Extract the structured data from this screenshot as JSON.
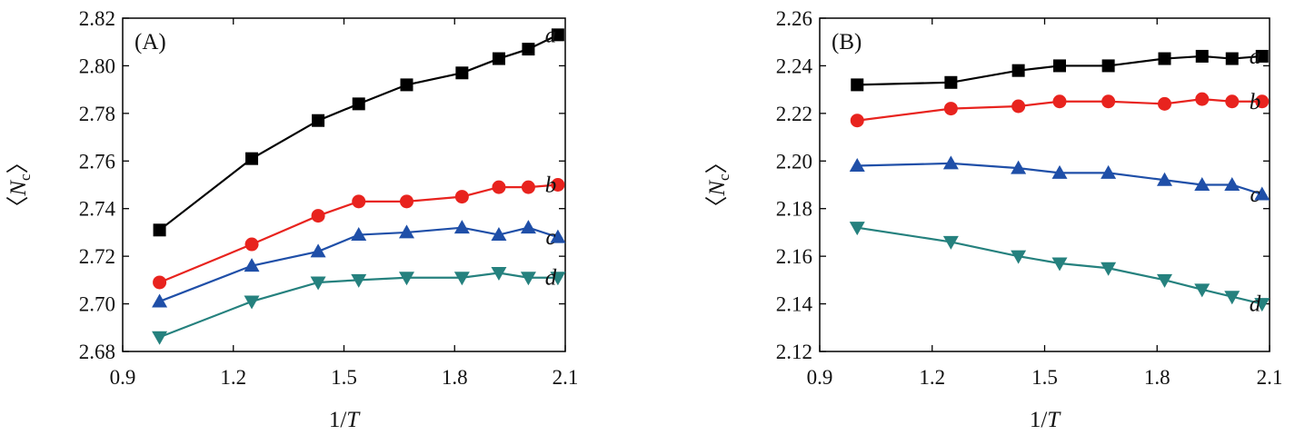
{
  "chart_data": [
    {
      "type": "line",
      "panel_label": "(A)",
      "xlabel_prefix": "1/",
      "xlabel_var": "T",
      "ylabel_open": "〈",
      "ylabel_var": "N",
      "ylabel_sub": "c",
      "ylabel_close": "〉",
      "xlim": [
        0.9,
        2.1
      ],
      "ylim": [
        2.68,
        2.82
      ],
      "xticks": [
        0.9,
        1.2,
        1.5,
        1.8,
        2.1
      ],
      "yticks": [
        2.68,
        2.7,
        2.72,
        2.74,
        2.76,
        2.78,
        2.8,
        2.82
      ],
      "xtick_labels": [
        "0.9",
        "1.2",
        "1.5",
        "1.8",
        "2.1"
      ],
      "ytick_labels": [
        "2.68",
        "2.70",
        "2.72",
        "2.74",
        "2.76",
        "2.78",
        "2.80",
        "2.82"
      ],
      "x": [
        1.0,
        1.25,
        1.43,
        1.54,
        1.67,
        1.82,
        1.92,
        2.0,
        2.08
      ],
      "series": [
        {
          "name": "a",
          "color": "#000000",
          "marker": "square",
          "values": [
            2.731,
            2.761,
            2.777,
            2.784,
            2.792,
            2.797,
            2.803,
            2.807,
            2.813
          ]
        },
        {
          "name": "b",
          "color": "#e8231e",
          "marker": "circle",
          "values": [
            2.709,
            2.725,
            2.737,
            2.743,
            2.743,
            2.745,
            2.749,
            2.749,
            2.75
          ]
        },
        {
          "name": "c",
          "color": "#1f4fa8",
          "marker": "triangle-up",
          "values": [
            2.701,
            2.716,
            2.722,
            2.729,
            2.73,
            2.732,
            2.729,
            2.732,
            2.728
          ]
        },
        {
          "name": "d",
          "color": "#25817e",
          "marker": "triangle-down",
          "values": [
            2.686,
            2.701,
            2.709,
            2.71,
            2.711,
            2.711,
            2.713,
            2.711,
            2.711
          ]
        }
      ]
    },
    {
      "type": "line",
      "panel_label": "(B)",
      "xlabel_prefix": "1/",
      "xlabel_var": "T",
      "ylabel_open": "〈",
      "ylabel_var": "N",
      "ylabel_sub": "c",
      "ylabel_close": "〉",
      "xlim": [
        0.9,
        2.1
      ],
      "ylim": [
        2.12,
        2.26
      ],
      "xticks": [
        0.9,
        1.2,
        1.5,
        1.8,
        2.1
      ],
      "yticks": [
        2.12,
        2.14,
        2.16,
        2.18,
        2.2,
        2.22,
        2.24,
        2.26
      ],
      "xtick_labels": [
        "0.9",
        "1.2",
        "1.5",
        "1.8",
        "2.1"
      ],
      "ytick_labels": [
        "2.12",
        "2.14",
        "2.16",
        "2.18",
        "2.20",
        "2.22",
        "2.24",
        "2.26"
      ],
      "x": [
        1.0,
        1.25,
        1.43,
        1.54,
        1.67,
        1.82,
        1.92,
        2.0,
        2.08
      ],
      "series": [
        {
          "name": "a",
          "color": "#000000",
          "marker": "square",
          "values": [
            2.232,
            2.233,
            2.238,
            2.24,
            2.24,
            2.243,
            2.244,
            2.243,
            2.244
          ]
        },
        {
          "name": "b",
          "color": "#e8231e",
          "marker": "circle",
          "values": [
            2.217,
            2.222,
            2.223,
            2.225,
            2.225,
            2.224,
            2.226,
            2.225,
            2.225
          ]
        },
        {
          "name": "c",
          "color": "#1f4fa8",
          "marker": "triangle-up",
          "values": [
            2.198,
            2.199,
            2.197,
            2.195,
            2.195,
            2.192,
            2.19,
            2.19,
            2.186
          ]
        },
        {
          "name": "d",
          "color": "#25817e",
          "marker": "triangle-down",
          "values": [
            2.172,
            2.166,
            2.16,
            2.157,
            2.155,
            2.15,
            2.146,
            2.143,
            2.14
          ]
        }
      ]
    }
  ]
}
